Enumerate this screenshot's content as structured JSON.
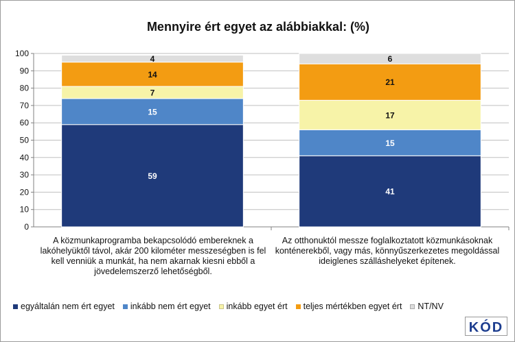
{
  "chart_data": {
    "type": "bar",
    "stacked": true,
    "title": "Mennyire ért egyet az alábbiakkal: (%)",
    "ylim": [
      0,
      100
    ],
    "yticks": [
      0,
      10,
      20,
      30,
      40,
      50,
      60,
      70,
      80,
      90,
      100
    ],
    "grid": true,
    "legend_position": "bottom",
    "categories": [
      "A közmunkaprogramba bekapcsolódó embereknek a lakóhelyüktől távol, akár 200 kilométer messzeségben is fel kell venniük a munkát, ha nem akarnak kiesni ebből a jövedelemszerző lehetőségből.",
      "Az otthonuktól messze foglalkoztatott közmunkásoknak konténerekből, vagy más, könnyűszerkezetes megoldással ideiglenes szálláshelyeket építenek."
    ],
    "series": [
      {
        "name": "egyáltalán nem ért egyet",
        "values": [
          59,
          41
        ],
        "color": "#1f3a7a",
        "label_color": "#ffffff"
      },
      {
        "name": "inkább nem ért egyet",
        "values": [
          15,
          15
        ],
        "color": "#4f86c8",
        "label_color": "#ffffff"
      },
      {
        "name": "inkább egyet ért",
        "values": [
          7,
          17
        ],
        "color": "#f7f3a8",
        "label_color": "#111111"
      },
      {
        "name": "teljes mértékben egyet ért",
        "values": [
          14,
          21
        ],
        "color": "#f39c12",
        "label_color": "#111111"
      },
      {
        "name": "NT/NV",
        "values": [
          4,
          6
        ],
        "color": "#dedede",
        "label_color": "#111111"
      }
    ]
  },
  "logo": {
    "text": "KÓD"
  }
}
